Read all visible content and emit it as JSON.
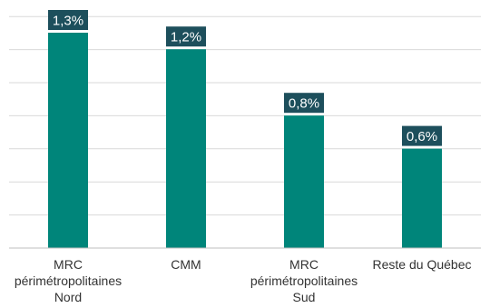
{
  "chart_data": {
    "type": "bar",
    "title": "",
    "xlabel": "",
    "ylabel": "",
    "categories": [
      [
        "MRC",
        "périmétropolitaines",
        "Nord"
      ],
      [
        "CMM"
      ],
      [
        "MRC",
        "périmétropolitaines",
        "Sud"
      ],
      [
        "Reste du Québec"
      ]
    ],
    "values": [
      1.3,
      1.2,
      0.8,
      0.6
    ],
    "data_labels": [
      "1,3%",
      "1,2%",
      "0,8%",
      "0,6%"
    ],
    "ylim": [
      0,
      1.3
    ],
    "grid": true,
    "legend": "none",
    "colors": {
      "bar": "#00857a",
      "label_box": "#1d4f5c",
      "grid": "#d9d9d9",
      "axis": "#bfbfbf"
    }
  }
}
